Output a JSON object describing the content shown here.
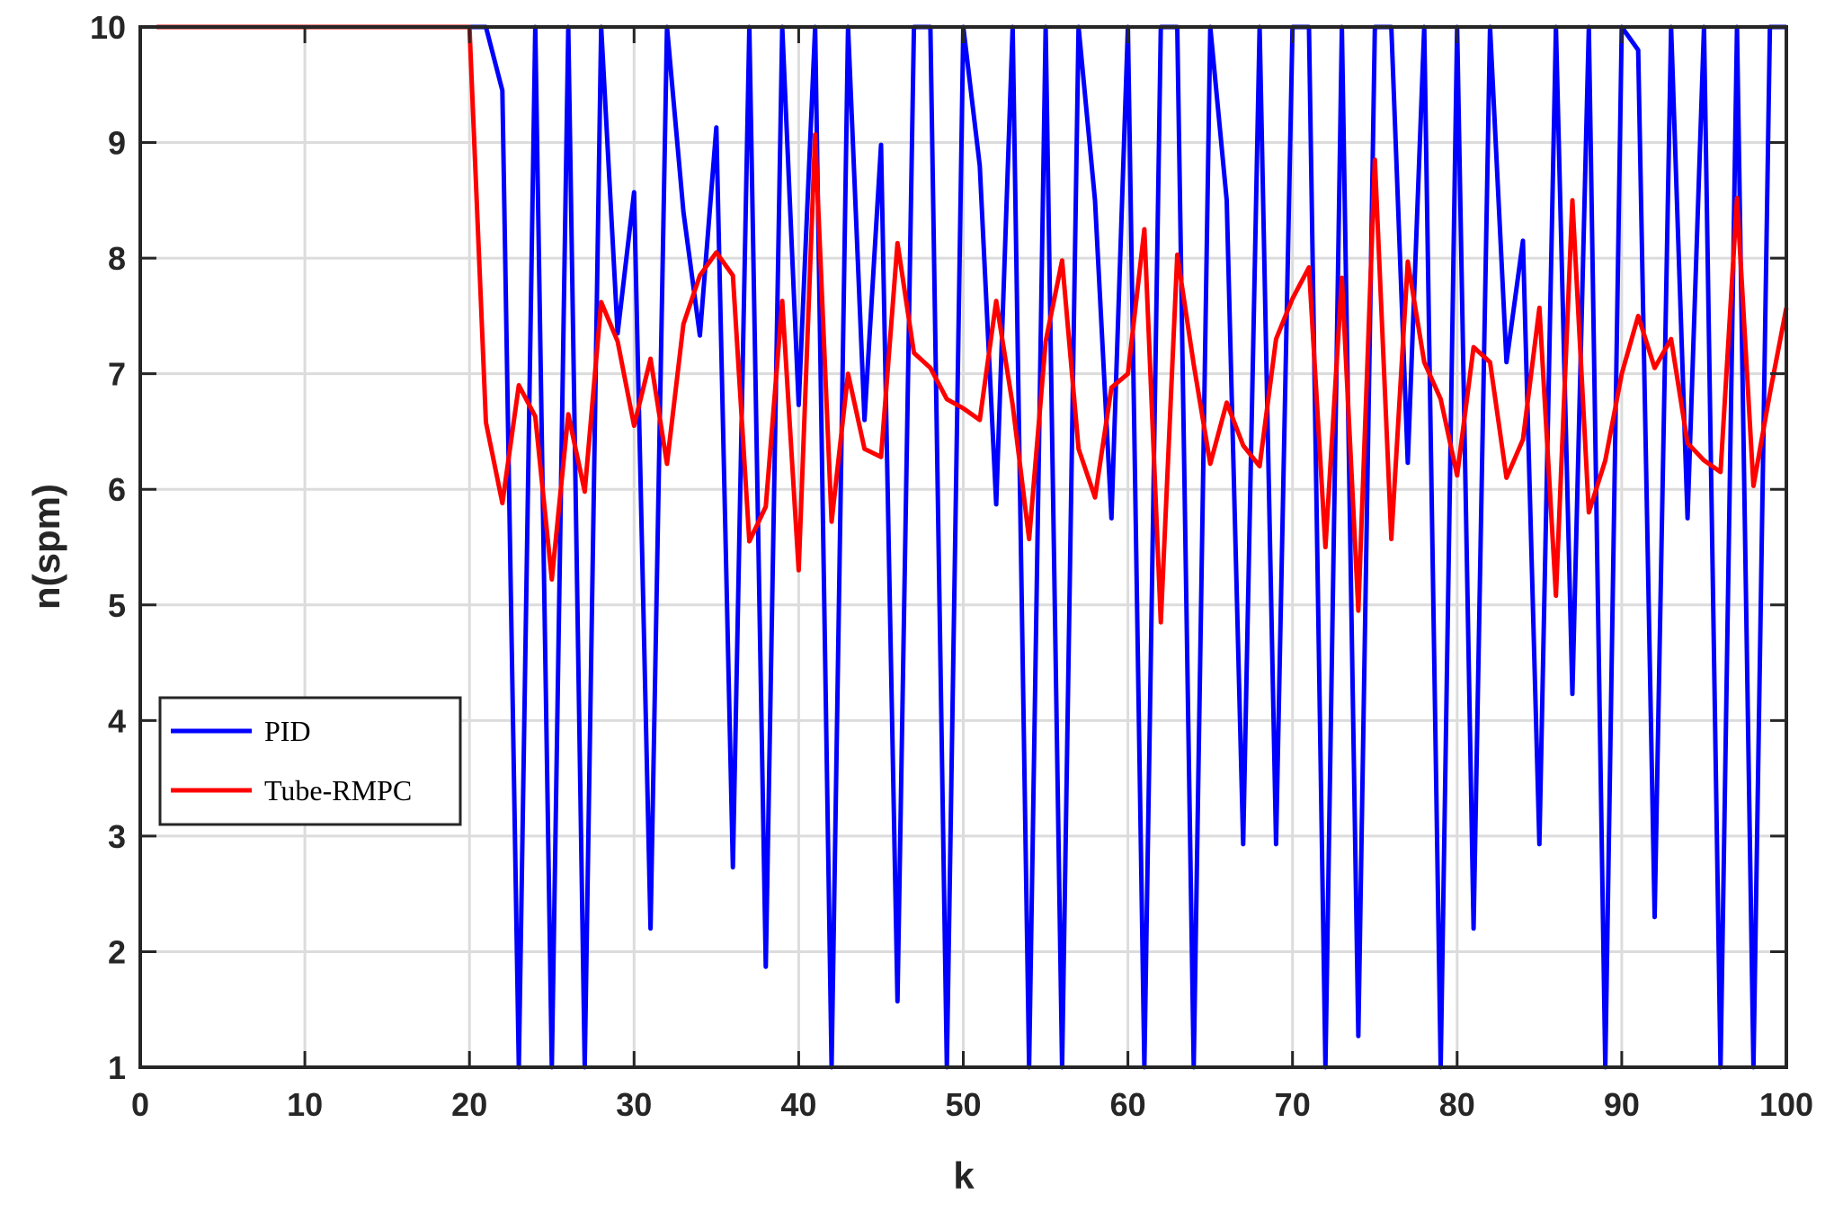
{
  "chart_data": {
    "type": "line",
    "title": "",
    "xlabel": "k",
    "ylabel": "n(spm)",
    "xlim": [
      0,
      100
    ],
    "ylim": [
      1,
      10
    ],
    "xticks": [
      0,
      10,
      20,
      30,
      40,
      50,
      60,
      70,
      80,
      90,
      100
    ],
    "yticks": [
      1,
      2,
      3,
      4,
      5,
      6,
      7,
      8,
      9,
      10
    ],
    "grid": true,
    "legend_position": "center-left",
    "series": [
      {
        "name": "PID",
        "color": "#0000ff",
        "x": [
          1,
          2,
          3,
          4,
          5,
          6,
          7,
          8,
          9,
          10,
          11,
          12,
          13,
          14,
          15,
          16,
          17,
          18,
          19,
          20,
          21,
          22,
          23,
          24,
          25,
          26,
          27,
          28,
          29,
          30,
          31,
          32,
          33,
          34,
          35,
          36,
          37,
          38,
          39,
          40,
          41,
          42,
          43,
          44,
          45,
          46,
          47,
          48,
          49,
          50,
          51,
          52,
          53,
          54,
          55,
          56,
          57,
          58,
          59,
          60,
          61,
          62,
          63,
          64,
          65,
          66,
          67,
          68,
          69,
          70,
          71,
          72,
          73,
          74,
          75,
          76,
          77,
          78,
          79,
          80,
          81,
          82,
          83,
          84,
          85,
          86,
          87,
          88,
          89,
          90,
          91,
          92,
          93,
          94,
          95,
          96,
          97,
          98,
          99,
          100
        ],
        "y": [
          10,
          10,
          10,
          10,
          10,
          10,
          10,
          10,
          10,
          10,
          10,
          10,
          10,
          10,
          10,
          10,
          10,
          10,
          10,
          10,
          10,
          9.45,
          1.0,
          10,
          1.0,
          10,
          1.0,
          10,
          7.35,
          8.57,
          2.2,
          10,
          8.4,
          7.33,
          9.13,
          2.73,
          10,
          1.87,
          10,
          6.73,
          10,
          1.0,
          10,
          6.6,
          8.98,
          1.57,
          10,
          10,
          1.0,
          10,
          8.8,
          5.87,
          10,
          1.0,
          10,
          1.0,
          10,
          8.5,
          5.75,
          10,
          1.0,
          10,
          10,
          1.0,
          10,
          8.5,
          2.93,
          10,
          2.93,
          10,
          10,
          1.0,
          10,
          1.27,
          10,
          10,
          6.23,
          10,
          1.0,
          10,
          2.2,
          10,
          7.1,
          8.15,
          2.93,
          10,
          4.23,
          10,
          1.0,
          10,
          9.8,
          2.3,
          10,
          5.75,
          10,
          1.0,
          10,
          1.0,
          10,
          10
        ]
      },
      {
        "name": "Tube-RMPC",
        "color": "#ff0000",
        "x": [
          1,
          2,
          3,
          4,
          5,
          6,
          7,
          8,
          9,
          10,
          11,
          12,
          13,
          14,
          15,
          16,
          17,
          18,
          19,
          20,
          21,
          22,
          23,
          24,
          25,
          26,
          27,
          28,
          29,
          30,
          31,
          32,
          33,
          34,
          35,
          36,
          37,
          38,
          39,
          40,
          41,
          42,
          43,
          44,
          45,
          46,
          47,
          48,
          49,
          50,
          51,
          52,
          53,
          54,
          55,
          56,
          57,
          58,
          59,
          60,
          61,
          62,
          63,
          64,
          65,
          66,
          67,
          68,
          69,
          70,
          71,
          72,
          73,
          74,
          75,
          76,
          77,
          78,
          79,
          80,
          81,
          82,
          83,
          84,
          85,
          86,
          87,
          88,
          89,
          90,
          91,
          92,
          93,
          94,
          95,
          96,
          97,
          98,
          99,
          100
        ],
        "y": [
          10,
          10,
          10,
          10,
          10,
          10,
          10,
          10,
          10,
          10,
          10,
          10,
          10,
          10,
          10,
          10,
          10,
          10,
          10,
          10,
          6.58,
          5.88,
          6.9,
          6.63,
          5.22,
          6.65,
          5.98,
          7.62,
          7.28,
          6.55,
          7.13,
          6.22,
          7.43,
          7.85,
          8.05,
          7.85,
          5.55,
          5.85,
          7.63,
          5.3,
          9.07,
          5.72,
          7.0,
          6.35,
          6.28,
          8.13,
          7.18,
          7.05,
          6.78,
          6.7,
          6.6,
          7.63,
          6.73,
          5.57,
          7.28,
          7.98,
          6.35,
          5.93,
          6.88,
          7.0,
          8.25,
          4.85,
          8.03,
          7.08,
          6.22,
          6.75,
          6.38,
          6.2,
          7.3,
          7.65,
          7.92,
          5.5,
          7.83,
          4.95,
          8.85,
          5.57,
          7.97,
          7.1,
          6.78,
          6.12,
          7.23,
          7.1,
          6.1,
          6.43,
          7.57,
          5.08,
          8.5,
          5.8,
          6.25,
          7.0,
          7.5,
          7.05,
          7.3,
          6.4,
          6.25,
          6.15,
          8.52,
          6.03,
          6.83,
          7.57
        ]
      }
    ]
  }
}
